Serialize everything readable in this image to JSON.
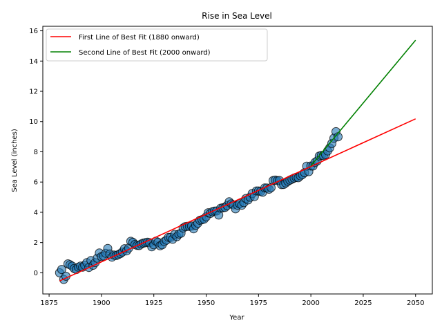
{
  "chart_data": {
    "type": "scatter",
    "title": "Rise in Sea Level",
    "xlabel": "Year",
    "ylabel": "Sea Level (inches)",
    "xlim": [
      1872,
      2058
    ],
    "ylim": [
      -1.4,
      16.3
    ],
    "xticks": [
      1875,
      1900,
      1925,
      1950,
      1975,
      2000,
      2025,
      2050
    ],
    "yticks": [
      0,
      2,
      4,
      6,
      8,
      10,
      12,
      14,
      16
    ],
    "grid": false,
    "legend_position": "top-left",
    "scatter": {
      "color": "#1f77b4",
      "x": [
        1880,
        1881,
        1882,
        1883,
        1884,
        1885,
        1886,
        1887,
        1888,
        1889,
        1890,
        1891,
        1892,
        1893,
        1894,
        1895,
        1896,
        1897,
        1898,
        1899,
        1900,
        1901,
        1902,
        1903,
        1904,
        1905,
        1906,
        1907,
        1908,
        1909,
        1910,
        1911,
        1912,
        1913,
        1914,
        1915,
        1916,
        1917,
        1918,
        1919,
        1920,
        1921,
        1922,
        1923,
        1924,
        1925,
        1926,
        1927,
        1928,
        1929,
        1930,
        1931,
        1932,
        1933,
        1934,
        1935,
        1936,
        1937,
        1938,
        1939,
        1940,
        1941,
        1942,
        1943,
        1944,
        1945,
        1946,
        1947,
        1948,
        1949,
        1950,
        1951,
        1952,
        1953,
        1954,
        1955,
        1956,
        1957,
        1958,
        1959,
        1960,
        1961,
        1962,
        1963,
        1964,
        1965,
        1966,
        1967,
        1968,
        1969,
        1970,
        1971,
        1972,
        1973,
        1974,
        1975,
        1976,
        1977,
        1978,
        1979,
        1980,
        1981,
        1982,
        1983,
        1984,
        1985,
        1986,
        1987,
        1988,
        1989,
        1990,
        1991,
        1992,
        1993,
        1994,
        1995,
        1996,
        1997,
        1998,
        1999,
        2000,
        2001,
        2002,
        2003,
        2004,
        2005,
        2006,
        2007,
        2008,
        2009,
        2010,
        2011,
        2012,
        2013
      ],
      "y": [
        0.0,
        0.22,
        -0.44,
        -0.23,
        0.59,
        0.53,
        0.44,
        0.28,
        0.22,
        0.37,
        0.44,
        0.37,
        0.5,
        0.67,
        0.35,
        0.81,
        0.5,
        0.67,
        0.97,
        1.31,
        1.07,
        1.11,
        1.29,
        1.61,
        1.24,
        1.04,
        1.17,
        1.14,
        1.2,
        1.27,
        1.37,
        1.59,
        1.45,
        1.63,
        2.08,
        2.01,
        1.87,
        1.81,
        1.8,
        1.9,
        1.96,
        1.99,
        2.02,
        1.99,
        1.72,
        1.85,
        2.09,
        2.02,
        1.79,
        1.85,
        2.06,
        2.16,
        2.34,
        2.34,
        2.22,
        2.54,
        2.39,
        2.56,
        2.62,
        2.96,
        3.05,
        3.07,
        3.07,
        3.09,
        2.91,
        3.14,
        3.28,
        3.47,
        3.51,
        3.55,
        3.7,
        3.97,
        3.93,
        4.04,
        4.08,
        4.09,
        3.82,
        4.27,
        4.3,
        4.32,
        4.45,
        4.69,
        4.56,
        4.49,
        4.23,
        4.47,
        4.56,
        4.47,
        4.64,
        4.91,
        4.82,
        5.0,
        5.24,
        5.04,
        5.41,
        5.41,
        5.38,
        5.33,
        5.61,
        5.6,
        5.53,
        5.63,
        6.1,
        6.13,
        6.09,
        6.1,
        5.83,
        5.84,
        5.94,
        6.05,
        6.13,
        6.19,
        6.26,
        6.31,
        6.29,
        6.41,
        6.5,
        6.62,
        7.05,
        6.69,
        7.06,
        7.06,
        7.3,
        7.39,
        7.72,
        7.76,
        7.75,
        7.82,
        8.06,
        8.26,
        8.55,
        8.9,
        9.33,
        8.99
      ]
    },
    "lines": [
      {
        "name": "First Line of Best Fit (1880 onward)",
        "color": "#ff0000",
        "x": [
          1880,
          2050
        ],
        "y": [
          -0.54,
          10.18
        ]
      },
      {
        "name": "Second Line of Best Fit (2000 onward)",
        "color": "#008000",
        "x": [
          2000,
          2050
        ],
        "y": [
          7.08,
          15.38
        ]
      }
    ]
  }
}
